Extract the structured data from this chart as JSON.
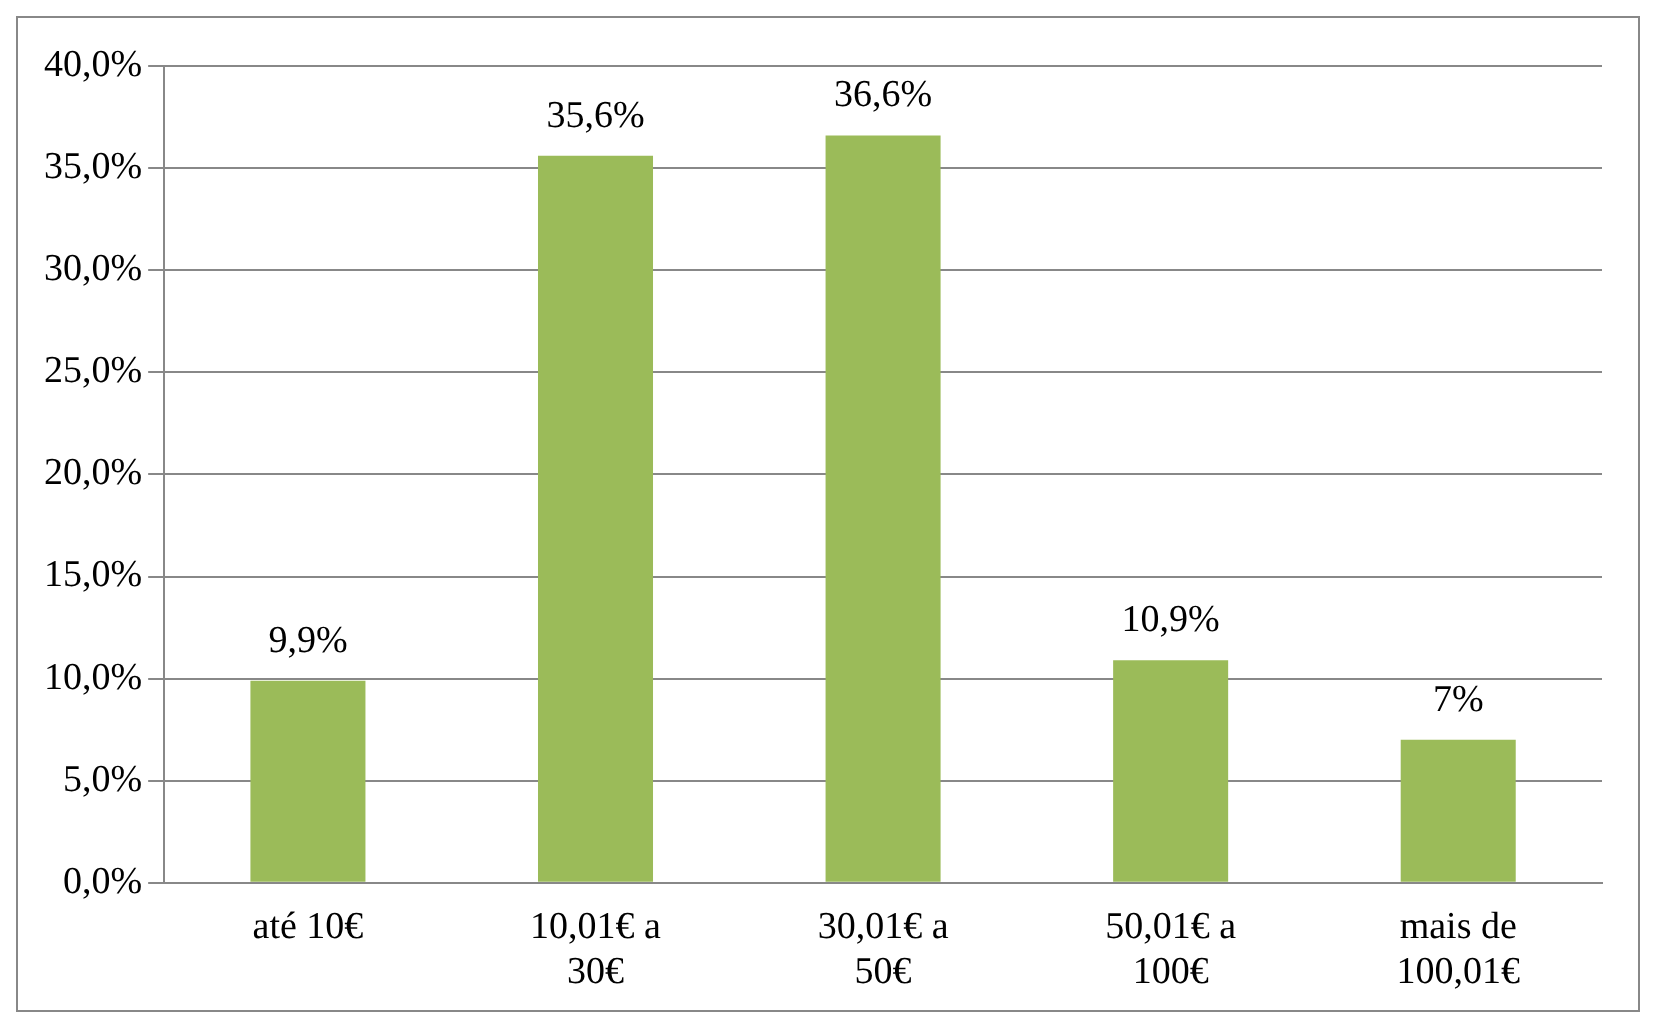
{
  "chart_data": {
    "type": "bar",
    "categories": [
      "até 10€",
      "10,01€ a 30€",
      "30,01€ a 50€",
      "50,01€ a 100€",
      "mais de 100,01€"
    ],
    "values": [
      9.9,
      35.6,
      36.6,
      10.9,
      7
    ],
    "value_labels": [
      "9,9%",
      "35,6%",
      "36,6%",
      "10,9%",
      "7%"
    ],
    "color": "#9bbb59",
    "ylim": [
      0,
      40
    ],
    "yticks": [
      {
        "value": 0,
        "label": "0,0%"
      },
      {
        "value": 5,
        "label": "5,0%"
      },
      {
        "value": 10,
        "label": "10,0%"
      },
      {
        "value": 15,
        "label": "15,0%"
      },
      {
        "value": 20,
        "label": "20,0%"
      },
      {
        "value": 25,
        "label": "25,0%"
      },
      {
        "value": 30,
        "label": "30,0%"
      },
      {
        "value": 35,
        "label": "35,0%"
      },
      {
        "value": 40,
        "label": "40,0%"
      }
    ],
    "grid": "y",
    "legend": false
  }
}
